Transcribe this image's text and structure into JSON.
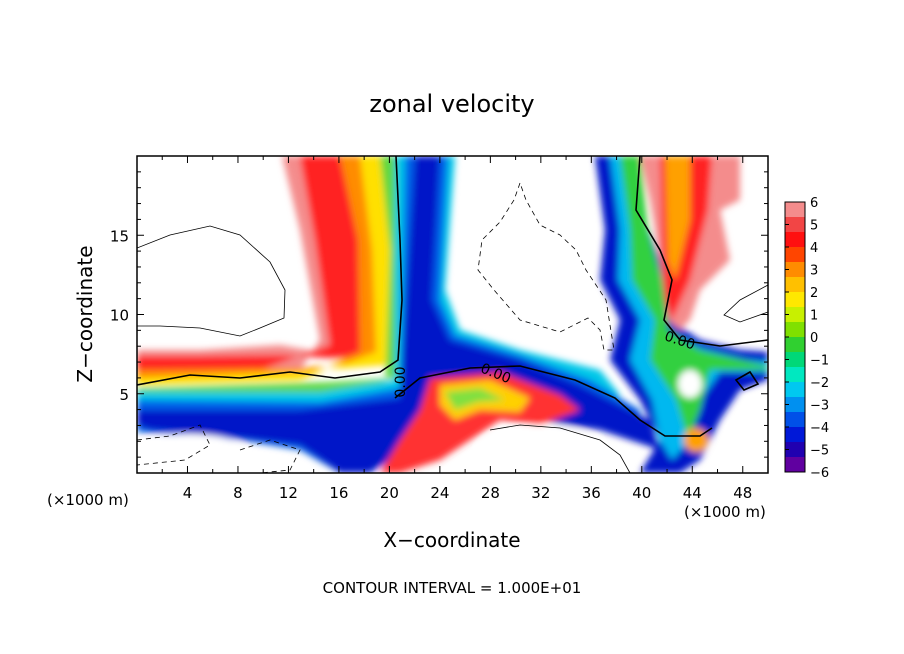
{
  "chart_data": {
    "type": "heatmap",
    "title": "zonal velocity",
    "xlabel": "X−coordinate",
    "ylabel": "Z−coordinate",
    "x_unit": "(×1000 m)",
    "x_unit_right": "(×1000 m)",
    "xlim": [
      0,
      50
    ],
    "ylim": [
      0,
      20
    ],
    "x_ticks": [
      4,
      8,
      12,
      16,
      20,
      24,
      28,
      32,
      36,
      40,
      44,
      48
    ],
    "y_ticks": [
      5,
      10,
      15
    ],
    "footer": "CONTOUR INTERVAL = 1.000E+01",
    "colorbar": {
      "ticks": [
        "6",
        "5",
        "4",
        "3",
        "2",
        "1",
        "0",
        "−1",
        "−2",
        "−3",
        "−4",
        "−5",
        "−6"
      ],
      "colors": [
        "#f48c8c",
        "#f24545",
        "#ff1010",
        "#ff4500",
        "#ff8c00",
        "#ffc000",
        "#ffe800",
        "#c8f000",
        "#80e000",
        "#30d030",
        "#00d878",
        "#00e8c0",
        "#00c8f0",
        "#0090f0",
        "#0050e8",
        "#0018d8",
        "#2000b0",
        "#6000a0"
      ]
    },
    "contour_labels": [
      "0.00",
      "0.00",
      "0.00"
    ],
    "features": [
      {
        "name": "positive band (left)",
        "x_center": 16,
        "z_top": 20,
        "z_bottom": 6
      },
      {
        "name": "negative core (center)",
        "x_center": 22,
        "z_top": 20,
        "z_bottom": 0
      },
      {
        "name": "negative band (right)",
        "x_center": 41,
        "z_top": 20,
        "z_bottom": 0
      },
      {
        "name": "positive band (right)",
        "x_center": 44,
        "z_top": 20,
        "z_bottom": 7
      }
    ]
  }
}
